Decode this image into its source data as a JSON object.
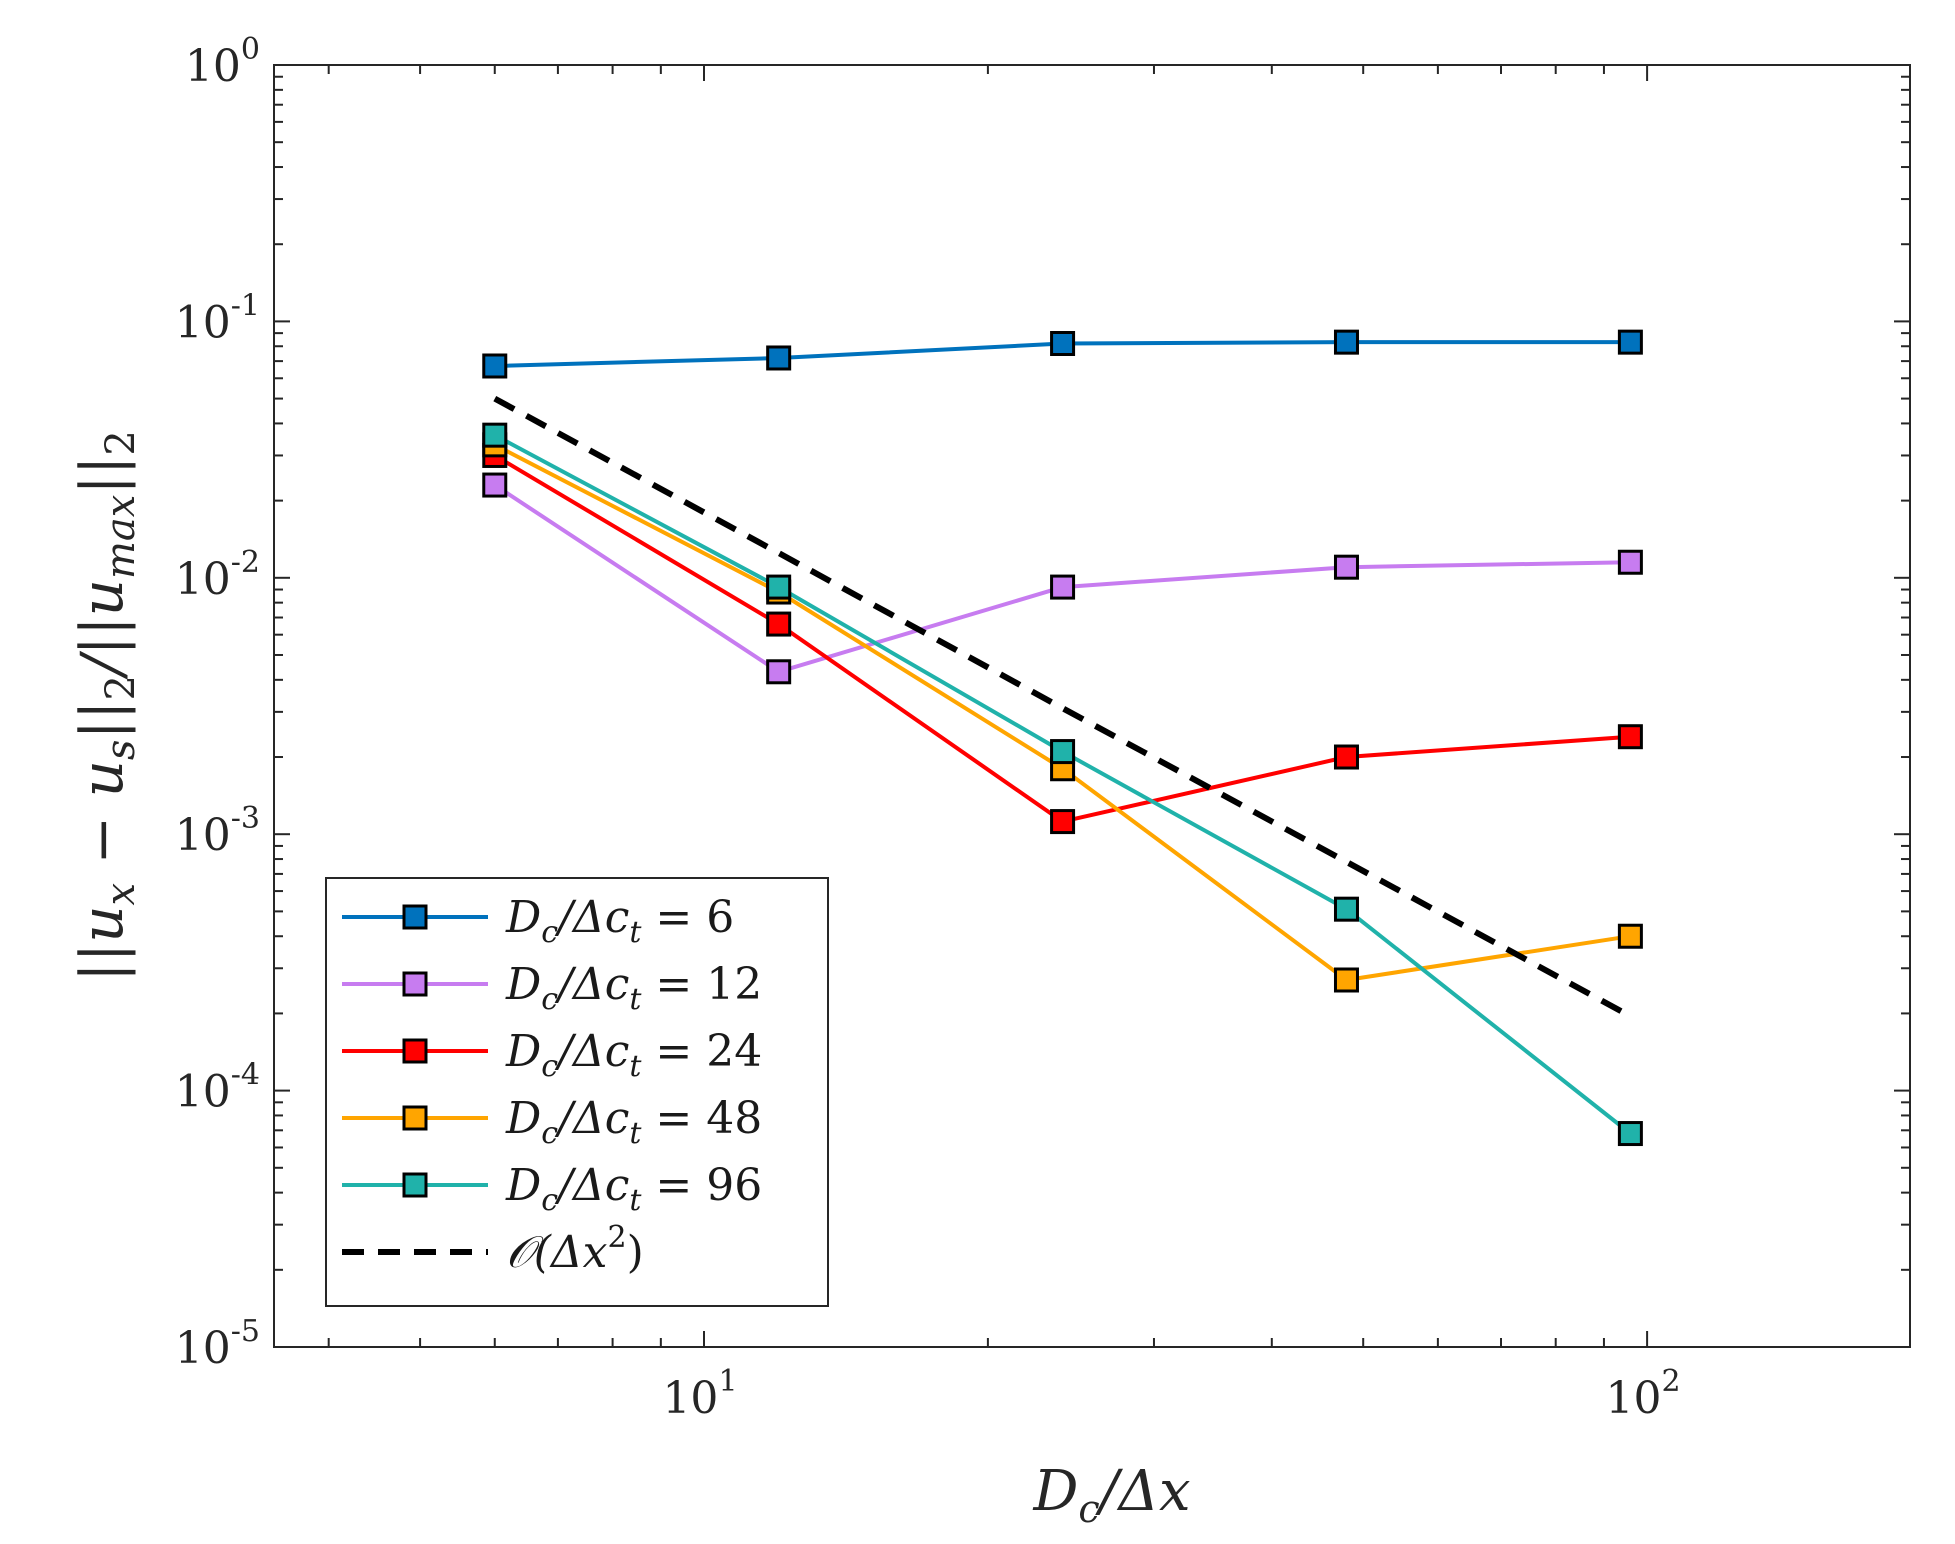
{
  "chart_data": {
    "type": "line",
    "xlabel": "D_c/Δx",
    "ylabel": "||u_x − u_s||_2/||u_max||_2",
    "xscale": "log",
    "yscale": "log",
    "xlim": [
      3.5,
      190
    ],
    "ylim": [
      1e-05,
      1
    ],
    "x_ticks": [
      {
        "base": "10",
        "exp": "1",
        "value": 10
      },
      {
        "base": "10",
        "exp": "2",
        "value": 100
      }
    ],
    "y_ticks": [
      {
        "base": "10",
        "exp": "0",
        "value": 1
      },
      {
        "base": "10",
        "exp": "-1",
        "value": 0.1
      },
      {
        "base": "10",
        "exp": "-2",
        "value": 0.01
      },
      {
        "base": "10",
        "exp": "-3",
        "value": 0.001
      },
      {
        "base": "10",
        "exp": "-4",
        "value": 0.0001
      },
      {
        "base": "10",
        "exp": "-5",
        "value": 1e-05
      }
    ],
    "grid": false,
    "legend_position": "bottom-left",
    "x": [
      6,
      12,
      24,
      48,
      96
    ],
    "series": [
      {
        "name": "D_c/Δc_t = 6",
        "label_lhs": "D",
        "label_sub": "c",
        "label_mid": "/Δc",
        "label_sub2": "t",
        "label_rhs": " = 6",
        "color": "#0072BD",
        "style": "solid",
        "marker": "square",
        "values": [
          0.067,
          0.072,
          0.082,
          0.083,
          0.083
        ]
      },
      {
        "name": "D_c/Δc_t = 12",
        "label_lhs": "D",
        "label_sub": "c",
        "label_mid": "/Δc",
        "label_sub2": "t",
        "label_rhs": " = 12",
        "color": "#C77CF0",
        "style": "solid",
        "marker": "square",
        "values": [
          0.023,
          0.0043,
          0.0092,
          0.011,
          0.0115
        ]
      },
      {
        "name": "D_c/Δc_t = 24",
        "label_lhs": "D",
        "label_sub": "c",
        "label_mid": "/Δc",
        "label_sub2": "t",
        "label_rhs": " = 24",
        "color": "#FF0000",
        "style": "solid",
        "marker": "square",
        "values": [
          0.03,
          0.0066,
          0.00112,
          0.002,
          0.0024
        ]
      },
      {
        "name": "D_c/Δc_t = 48",
        "label_lhs": "D",
        "label_sub": "c",
        "label_mid": "/Δc",
        "label_sub2": "t",
        "label_rhs": " = 48",
        "color": "#FFA500",
        "style": "solid",
        "marker": "square",
        "values": [
          0.033,
          0.0088,
          0.0018,
          0.00027,
          0.0004
        ]
      },
      {
        "name": "D_c/Δc_t = 96",
        "label_lhs": "D",
        "label_sub": "c",
        "label_mid": "/Δc",
        "label_sub2": "t",
        "label_rhs": " = 96",
        "color": "#20B2AA",
        "style": "solid",
        "marker": "square",
        "values": [
          0.036,
          0.0092,
          0.0021,
          0.00051,
          6.8e-05
        ]
      },
      {
        "name": "O(Δx^2)",
        "label_lhs": "𝒪(Δx",
        "label_sup": "2",
        "label_rhs": ")",
        "color": "#000000",
        "style": "dashed",
        "marker": "none",
        "values": [
          0.05,
          0.0125,
          0.0031,
          0.00078,
          0.000195
        ]
      }
    ]
  }
}
